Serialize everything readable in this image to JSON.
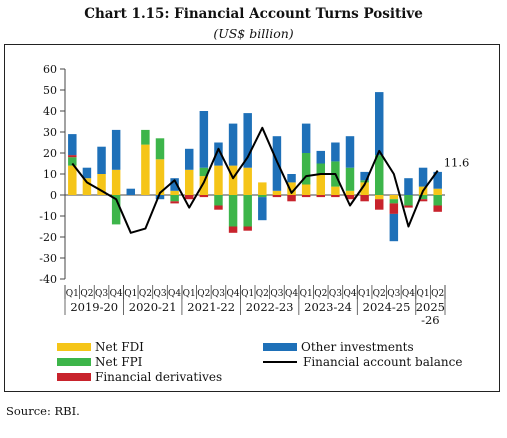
{
  "title": "Chart 1.15: Financial Account Turns Positive",
  "subtitle": "(US$ billion)",
  "source": "Source: RBI.",
  "chart_data": {
    "type": "bar",
    "stacked": true,
    "categories": [
      "2019-20 Q1",
      "2019-20 Q2",
      "2019-20 Q3",
      "2019-20 Q4",
      "2020-21 Q1",
      "2020-21 Q2",
      "2020-21 Q3",
      "2020-21 Q4",
      "2021-22 Q1",
      "2021-22 Q2",
      "2021-22 Q3",
      "2021-22 Q4",
      "2022-23 Q1",
      "2022-23 Q2",
      "2022-23 Q3",
      "2022-23 Q4",
      "2023-24 Q1",
      "2023-24 Q2",
      "2023-24 Q3",
      "2023-24 Q4",
      "2024-25 Q1",
      "2024-25 Q2",
      "2024-25 Q3",
      "2024-25 Q4",
      "2025-26 Q1",
      "2025-26 Q2"
    ],
    "quarter_labels": [
      "Q1",
      "Q2",
      "Q3",
      "Q4",
      "Q1",
      "Q2",
      "Q3",
      "Q4",
      "Q1",
      "Q2",
      "Q3",
      "Q4",
      "Q1",
      "Q2",
      "Q3",
      "Q4",
      "Q1",
      "Q2",
      "Q3",
      "Q4",
      "Q1",
      "Q2",
      "Q3",
      "Q4",
      "Q1",
      "Q2"
    ],
    "year_groups": [
      {
        "label": "2019-20",
        "count": 4
      },
      {
        "label": "2020-21",
        "count": 4
      },
      {
        "label": "2021-22",
        "count": 4
      },
      {
        "label": "2022-23",
        "count": 4
      },
      {
        "label": "2023-24",
        "count": 4
      },
      {
        "label": "2024-25",
        "count": 4
      },
      {
        "label": "2025\n-26",
        "count": 2
      }
    ],
    "series": [
      {
        "name": "Net FDI",
        "color": "#F5C518",
        "values": [
          14,
          8,
          10,
          12,
          0,
          24,
          17,
          2,
          12,
          9,
          14,
          14,
          13,
          6,
          2,
          6,
          5,
          10,
          4,
          2,
          6,
          -2,
          -2,
          0,
          4,
          3
        ]
      },
      {
        "name": "Net FPI",
        "color": "#3DB54A",
        "values": [
          4,
          0,
          0,
          -14,
          0,
          7,
          10,
          -3,
          0,
          4,
          -5,
          -15,
          -15,
          -1,
          0,
          0,
          15,
          5,
          12,
          11,
          1,
          19,
          -2,
          -5,
          -2,
          -5
        ]
      },
      {
        "name": "Financial derivatives",
        "color": "#C8232C",
        "values": [
          1,
          0,
          0,
          0,
          0,
          0,
          0,
          -1,
          -2,
          -1,
          -2,
          -3,
          -2,
          0,
          -1,
          -3,
          -1,
          -1,
          -1,
          -2,
          -3,
          -5,
          -5,
          -1,
          -1,
          -3
        ]
      },
      {
        "name": "Other investments",
        "color": "#1E70B8",
        "values": [
          10,
          5,
          13,
          19,
          3,
          0,
          -2,
          6,
          10,
          27,
          11,
          20,
          26,
          -11,
          26,
          4,
          14,
          6,
          9,
          15,
          4,
          30,
          -13,
          8,
          9,
          8
        ]
      }
    ],
    "line": {
      "name": "Financial account balance",
      "color": "#000000",
      "values": [
        15,
        6,
        2,
        -2,
        -18,
        -16,
        1,
        7,
        -6,
        6,
        22,
        8,
        18,
        32,
        16,
        1,
        9,
        10,
        10,
        -5,
        5,
        21,
        10,
        -15,
        2,
        11.6
      ],
      "end_label": "11.6"
    },
    "ylim": [
      -40,
      60
    ],
    "yticks": [
      -40,
      -30,
      -20,
      -10,
      0,
      10,
      20,
      30,
      40,
      50,
      60
    ],
    "xlabel": "",
    "ylabel": "",
    "legend_position": "bottom"
  }
}
